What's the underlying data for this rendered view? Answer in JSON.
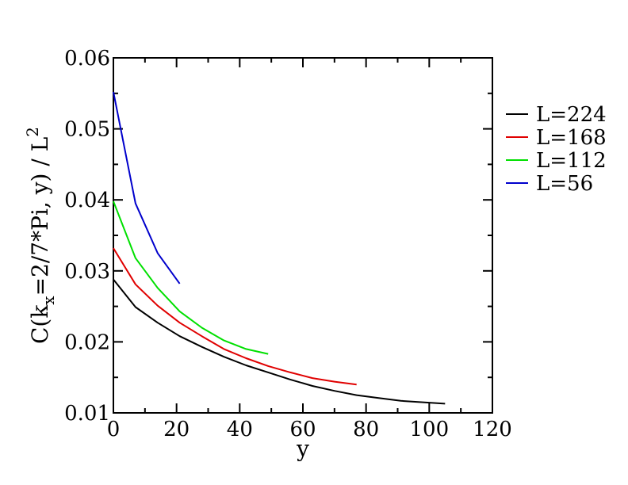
{
  "chart_data": {
    "type": "line",
    "title": "",
    "xlabel": "y",
    "ylabel_parts": {
      "base": "C(k",
      "sub": "x",
      "mid": "=2/7*Pi, y) / L",
      "sup": "2"
    },
    "xlim": [
      0,
      120
    ],
    "ylim": [
      0.01,
      0.06
    ],
    "xticks": [
      "0",
      "20",
      "40",
      "60",
      "80",
      "100",
      "120"
    ],
    "yticks": [
      "0.01",
      "0.02",
      "0.03",
      "0.04",
      "0.05",
      "0.06"
    ],
    "grid": false,
    "legend_position": "right",
    "series": [
      {
        "name": "L=224",
        "color": "#000000",
        "x": [
          0,
          7,
          14,
          21,
          28,
          35,
          42,
          49,
          56,
          63,
          70,
          77,
          84,
          91,
          98,
          105
        ],
        "y": [
          0.0288,
          0.0249,
          0.0227,
          0.0208,
          0.0193,
          0.0179,
          0.0167,
          0.0157,
          0.0147,
          0.0138,
          0.0131,
          0.0125,
          0.0121,
          0.0117,
          0.0115,
          0.0113
        ]
      },
      {
        "name": "L=168",
        "color": "#e00000",
        "x": [
          0,
          7,
          14,
          21,
          28,
          35,
          42,
          49,
          56,
          63,
          70,
          77
        ],
        "y": [
          0.0332,
          0.0281,
          0.0251,
          0.0227,
          0.0208,
          0.019,
          0.0177,
          0.0166,
          0.0157,
          0.0149,
          0.0144,
          0.014
        ]
      },
      {
        "name": "L=112",
        "color": "#00e000",
        "x": [
          0,
          7,
          14,
          21,
          28,
          35,
          42,
          49
        ],
        "y": [
          0.0398,
          0.0318,
          0.0276,
          0.0243,
          0.022,
          0.0202,
          0.019,
          0.0183
        ]
      },
      {
        "name": "L=56",
        "color": "#0000cc",
        "x": [
          0,
          7,
          14,
          21
        ],
        "y": [
          0.0552,
          0.0395,
          0.0325,
          0.0282
        ]
      }
    ]
  }
}
